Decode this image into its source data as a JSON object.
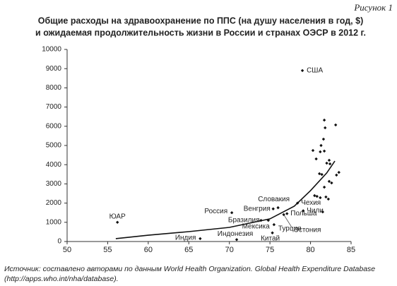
{
  "chart_data": {
    "type": "scatter",
    "figure_label": "Рисунок 1",
    "title": [
      "Общие расходы на здравоохранение по ППС (на душу населения в год, $)",
      "и ожидаемая продолжительность жизни в России и странах ОЭСР в 2012 г."
    ],
    "source": [
      "Источник: составлено авторами по данным World Health Organization. Global Health Expenditure Database",
      "(http://apps.who.int/nha/database)."
    ],
    "xlim": [
      50,
      85
    ],
    "xticks": [
      50,
      55,
      60,
      65,
      70,
      75,
      80,
      85
    ],
    "ylim": [
      0,
      10000
    ],
    "yticks": [
      0,
      1000,
      2000,
      3000,
      4000,
      5000,
      6000,
      7000,
      8000,
      9000,
      10000
    ],
    "grid": false,
    "color": "#111111",
    "points": {
      "x": [
        79.0,
        56.2,
        70.3,
        66.4,
        70.9,
        73.9,
        74.8,
        75.4,
        76.0,
        78.4,
        79.1,
        77.1,
        75.5,
        75.3,
        76.7,
        81.7,
        81.8,
        83.1,
        81.6,
        81.3,
        80.3,
        81.2,
        81.7,
        82.3,
        82.0,
        82.4,
        80.7,
        81.1,
        81.4,
        83.5,
        83.2,
        82.3,
        82.6,
        81.7,
        80.5,
        80.8,
        81.2,
        81.9,
        82.2,
        81.5
      ],
      "values": [
        8900,
        1000,
        1500,
        150,
        100,
        1100,
        1100,
        1700,
        1760,
        2000,
        1600,
        1450,
        880,
        450,
        1400,
        6320,
        5920,
        6070,
        5330,
        5000,
        4740,
        4670,
        4710,
        4230,
        4080,
        4040,
        4300,
        3530,
        3490,
        3600,
        3460,
        3130,
        3050,
        2830,
        2390,
        2350,
        2280,
        2320,
        2210,
        1540
      ],
      "labels": [
        "США",
        "ЮАР",
        "Россия",
        "Индия",
        "Индонезия",
        "Бразилия",
        "Мексика",
        "Венгрия",
        "Словакия",
        "Чехия",
        "Чили",
        "Польша",
        "Турция",
        "Китай",
        "Эстония",
        null,
        null,
        null,
        null,
        null,
        null,
        null,
        null,
        null,
        null,
        null,
        null,
        null,
        null,
        null,
        null,
        null,
        null,
        null,
        null,
        null,
        null,
        null,
        null,
        null
      ]
    },
    "trend": {
      "x": [
        56,
        60,
        65,
        70,
        75,
        78,
        80,
        82,
        83
      ],
      "values": [
        150,
        330,
        515,
        735,
        1180,
        1840,
        2650,
        3570,
        4190
      ]
    }
  }
}
